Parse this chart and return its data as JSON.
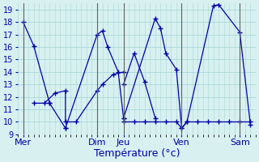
{
  "background_color": "#d8f0f0",
  "grid_color": "#a8d8d8",
  "line_color": "#0000aa",
  "xlabel": "Température (°c)",
  "ylim": [
    9,
    19.5
  ],
  "yticks": [
    9,
    10,
    11,
    12,
    13,
    14,
    15,
    16,
    17,
    18,
    19
  ],
  "day_labels": [
    "Mer",
    "Dim",
    "Jeu",
    "Ven",
    "Sam"
  ],
  "day_tick_positions": [
    0,
    14,
    19,
    30,
    41
  ],
  "xlim": [
    -1,
    44
  ],
  "series": [
    {
      "x": [
        0,
        2,
        5,
        5,
        8,
        8,
        14,
        15,
        16,
        18,
        19,
        19,
        25,
        26,
        27,
        29,
        30,
        31,
        36,
        37,
        41,
        43
      ],
      "y": [
        18,
        16.1,
        11.5,
        11.5,
        9.5,
        9.5,
        17.0,
        17.3,
        16.0,
        14.0,
        10.3,
        10.3,
        18.3,
        17.5,
        15.5,
        14.2,
        9.5,
        10.0,
        19.3,
        19.4,
        17.2,
        9.8
      ]
    },
    {
      "x": [
        2,
        4,
        6,
        8,
        8,
        10,
        14,
        15,
        17,
        19
      ],
      "y": [
        11.5,
        11.5,
        12.3,
        12.5,
        10.0,
        10.0,
        12.5,
        13.0,
        13.8,
        14.0
      ]
    },
    {
      "x": [
        19,
        21,
        23,
        25
      ],
      "y": [
        13.0,
        15.5,
        13.2,
        10.3
      ]
    },
    {
      "x": [
        19,
        21,
        23,
        25,
        27,
        29,
        30,
        31,
        33,
        35,
        37,
        39,
        41,
        43
      ],
      "y": [
        10.0,
        10.0,
        10.0,
        10.0,
        10.0,
        10.0,
        9.5,
        10.0,
        10.0,
        10.0,
        10.0,
        10.0,
        10.0,
        10.0
      ]
    }
  ]
}
